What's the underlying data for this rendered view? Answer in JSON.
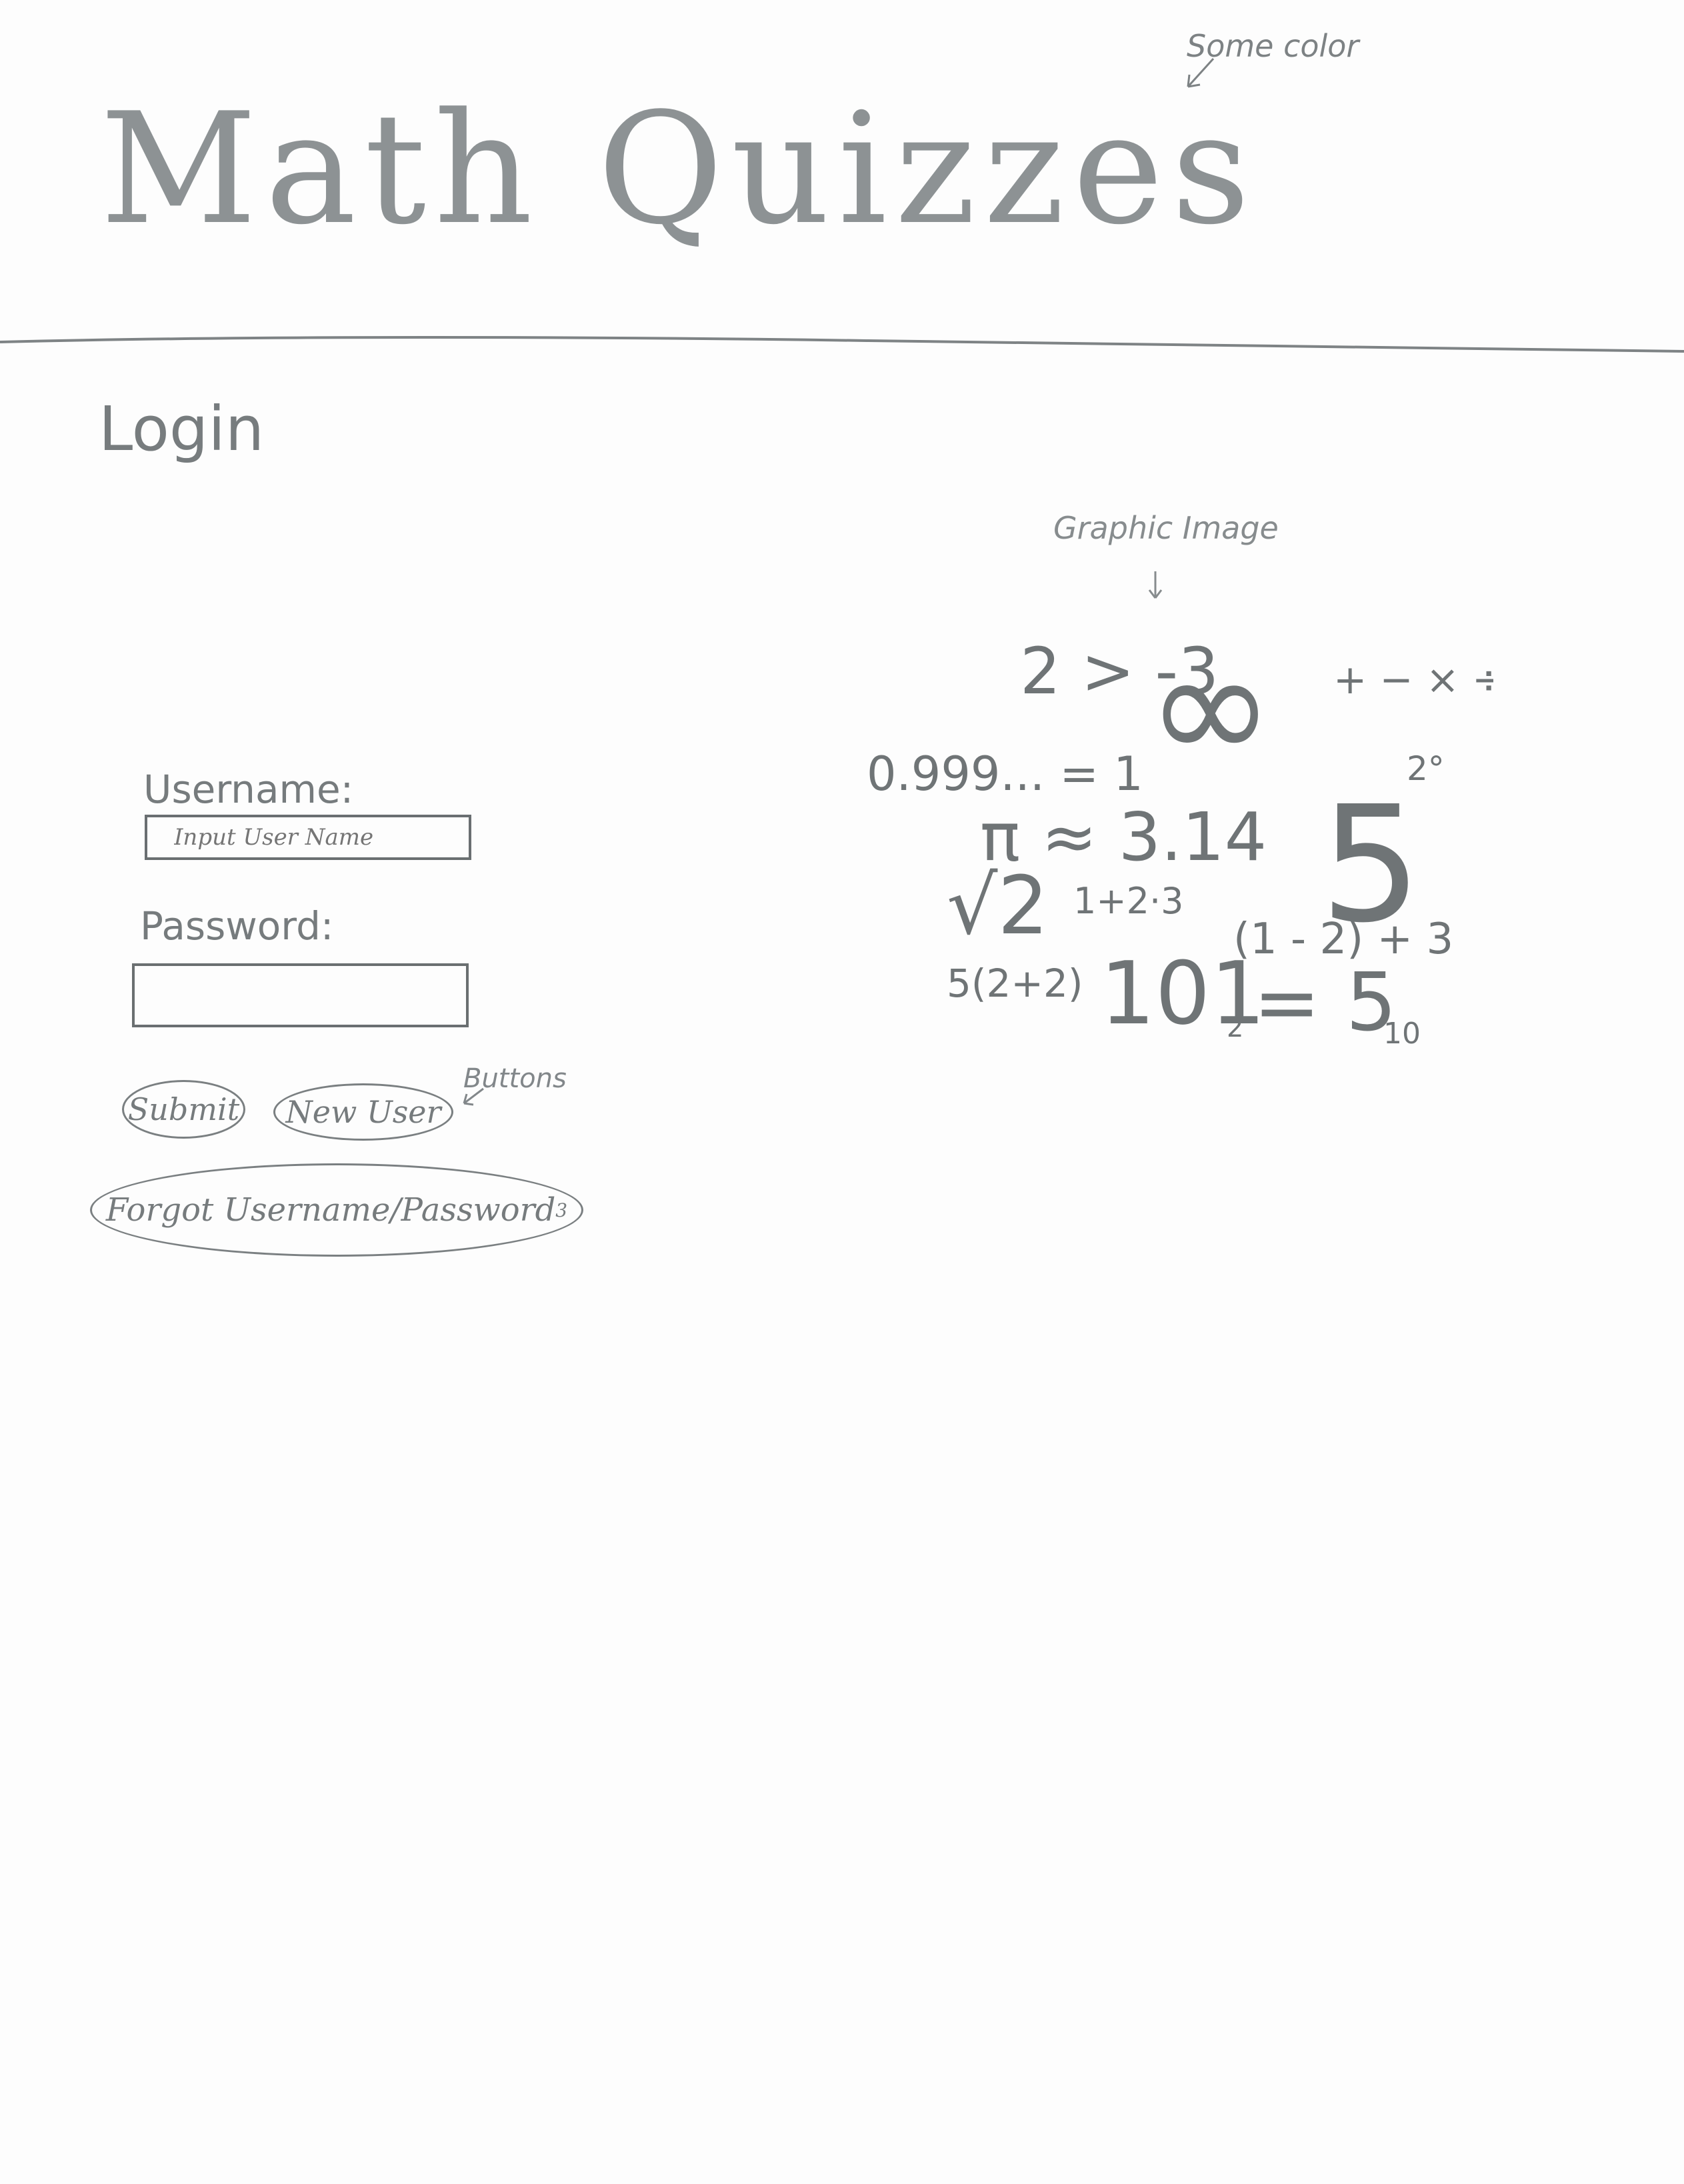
{
  "header": {
    "title": "Math Quizzes",
    "color_note": "Some color"
  },
  "login": {
    "heading": "Login",
    "username_label": "Username:",
    "username_placeholder": "Input User Name",
    "password_label": "Password:",
    "password_value": "",
    "submit_label": "Submit",
    "new_user_label": "New User",
    "buttons_note": "Buttons",
    "forgot_label": "Forgot Username/Password",
    "forgot_mark": "3"
  },
  "graphic": {
    "note": "Graphic Image",
    "expressions": {
      "comparison": "2 > -3",
      "infinity": "∞",
      "operators": "+ − × ÷",
      "repeating": "0.999... = 1",
      "pi": "π ≈ 3.14",
      "two_degrees": "2°",
      "five": "5",
      "root_two": "√2",
      "sum": "1+2·3",
      "paren": "(1 - 2) + 3",
      "times": "5(2+2)",
      "binary": "101",
      "base_two": "2",
      "equals_five": "= 5",
      "base_ten": "10"
    }
  },
  "colors": {
    "ink": "#6e7375",
    "paper": "#fdfdfd"
  }
}
